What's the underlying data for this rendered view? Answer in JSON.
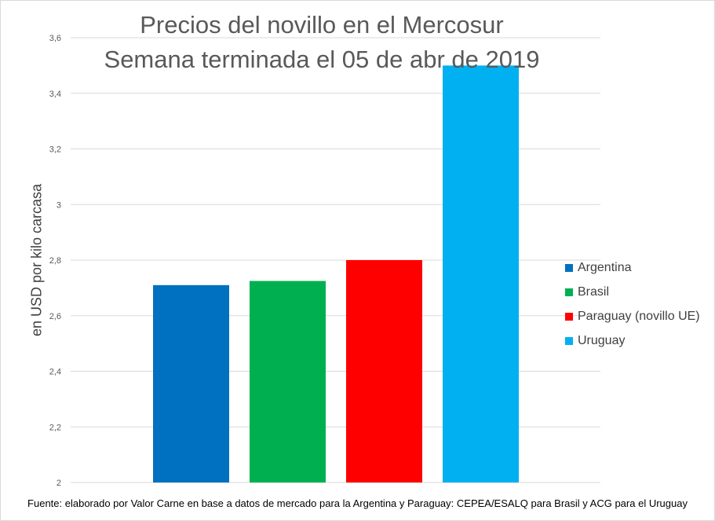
{
  "chart_data": {
    "type": "bar",
    "title_line1": "Precios del novillo en el Mercosur",
    "title_line2": "Semana terminada el 05 de abr de 2019",
    "xlabel": "",
    "ylabel": "en USD por kilo carcasa",
    "ylim": [
      2,
      3.6
    ],
    "yticks": [
      {
        "value": 2,
        "label": "2"
      },
      {
        "value": 2.2,
        "label": "2,2"
      },
      {
        "value": 2.4,
        "label": "2,4"
      },
      {
        "value": 2.6,
        "label": "2,6"
      },
      {
        "value": 2.8,
        "label": "2,8"
      },
      {
        "value": 3,
        "label": "3"
      },
      {
        "value": 3.2,
        "label": "3,2"
      },
      {
        "value": 3.4,
        "label": "3,4"
      },
      {
        "value": 3.6,
        "label": "3,6"
      }
    ],
    "grid": true,
    "legend_position": "right",
    "series": [
      {
        "name": "Argentina",
        "value": 2.71,
        "color": "#0070c0"
      },
      {
        "name": "Brasil",
        "value": 2.725,
        "color": "#00b050"
      },
      {
        "name": "Paraguay (novillo UE)",
        "value": 2.8,
        "color": "#ff0000"
      },
      {
        "name": "Uruguay",
        "value": 3.5,
        "color": "#00b0f0"
      }
    ]
  },
  "source_note": "Fuente: elaborado por Valor Carne en base a datos de mercado para la Argentina y Paraguay: CEPEA/ESALQ para Brasil y ACG para el Uruguay",
  "colors": {
    "grid": "#d9d9d9",
    "axis_text": "#595959",
    "frame": "#d9d9d9"
  }
}
